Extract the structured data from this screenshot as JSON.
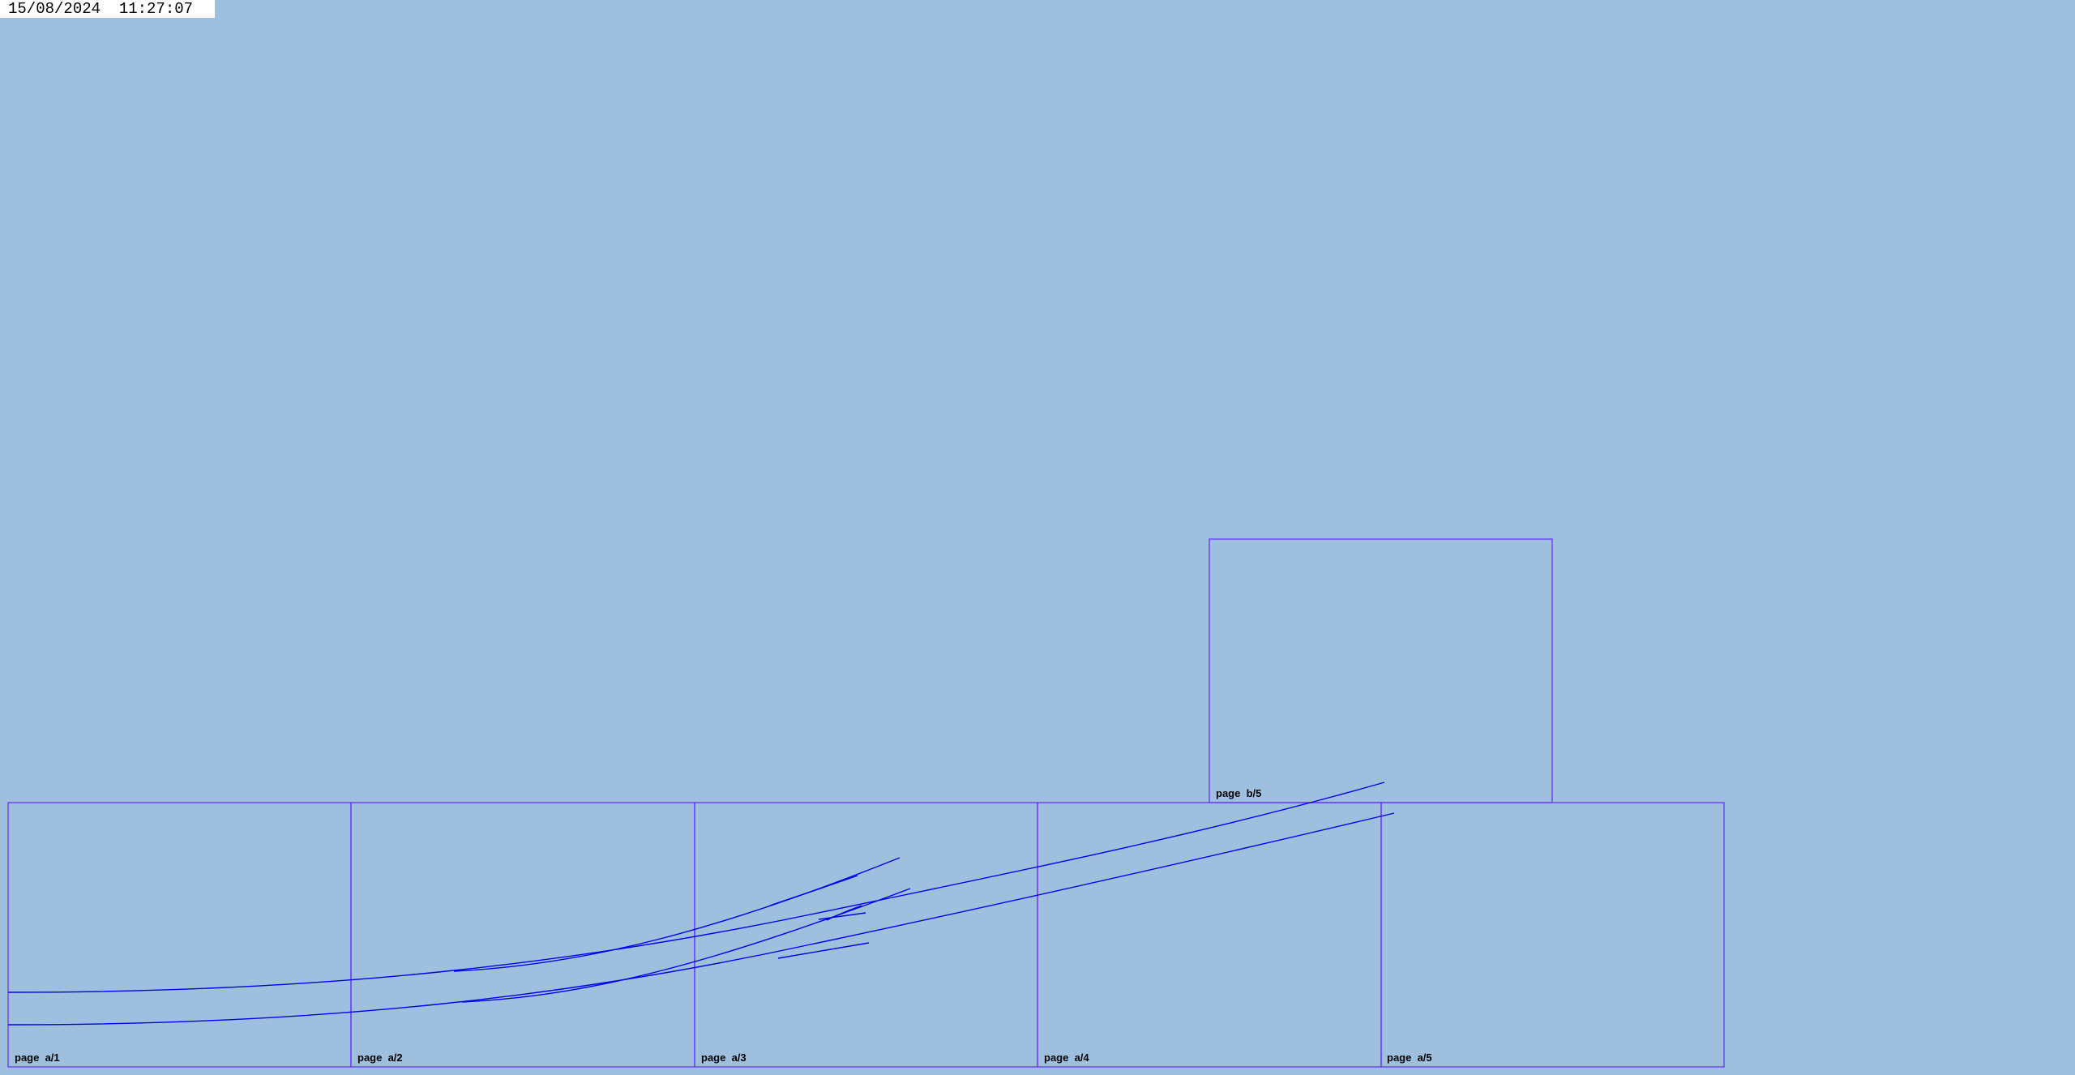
{
  "timestamp": "15/08/2024  11:27:07",
  "colors": {
    "background": "#9fbfdf",
    "page_border": "#6633ff",
    "track": "#0000ee"
  },
  "pages": [
    {
      "label": "page  a/1"
    },
    {
      "label": "page  a/2"
    },
    {
      "label": "page  a/3"
    },
    {
      "label": "page  a/4"
    },
    {
      "label": "page  a/5"
    },
    {
      "label": "page  b/5"
    }
  ]
}
